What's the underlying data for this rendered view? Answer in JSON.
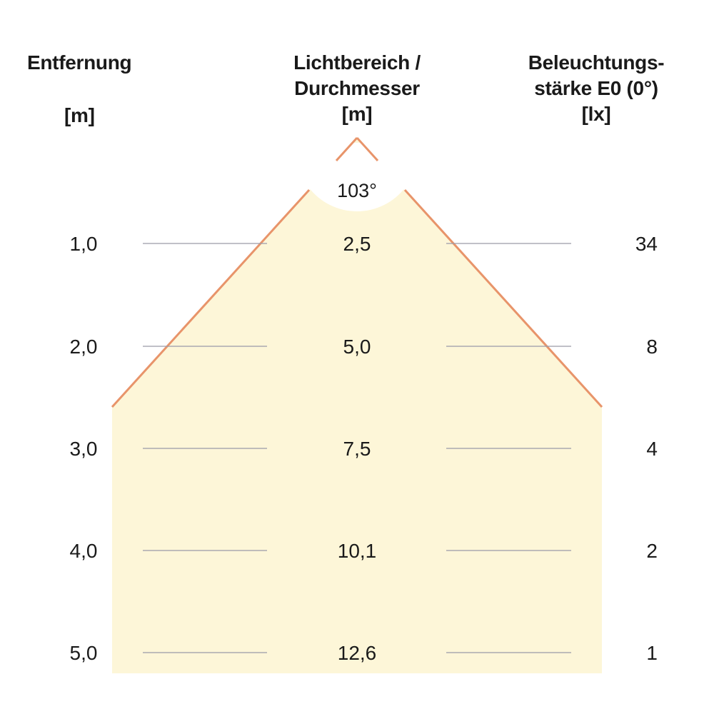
{
  "headers": {
    "distance": {
      "label": "Entfernung",
      "unit": "[m]"
    },
    "diameter": {
      "line1": "Lichtbereich /",
      "line2": "Durchmesser",
      "unit": "[m]"
    },
    "illuminance": {
      "line1": "Beleuchtungs-",
      "line2": "stärke E0 (0°)",
      "unit": "[lx]"
    }
  },
  "beam_angle": "103°",
  "rows": [
    {
      "distance": "1,0",
      "diameter": "2,5",
      "illuminance": "34"
    },
    {
      "distance": "2,0",
      "diameter": "5,0",
      "illuminance": "8"
    },
    {
      "distance": "3,0",
      "diameter": "7,5",
      "illuminance": "4"
    },
    {
      "distance": "4,0",
      "diameter": "10,1",
      "illuminance": "2"
    },
    {
      "distance": "5,0",
      "diameter": "12,6",
      "illuminance": "1"
    }
  ],
  "colors": {
    "beam_fill": "#fdf6d8",
    "beam_edge": "#e8946a",
    "grid_line": "#9a9aa8",
    "text": "#1a1a1a"
  }
}
